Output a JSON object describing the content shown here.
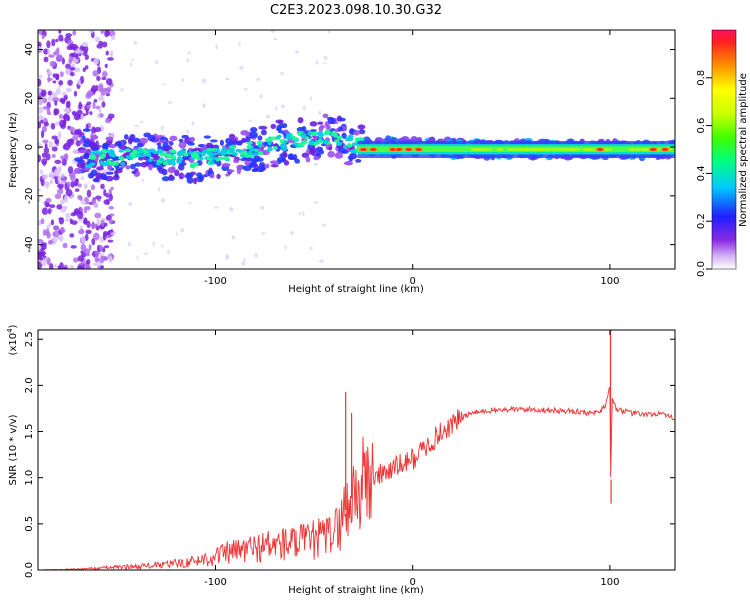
{
  "page_title": "C2E3.2023.098.10.30.G32",
  "chart_data": [
    {
      "type": "heatmap",
      "name": "spectrogram",
      "xlabel": "Height of straight line (km)",
      "ylabel": "Frequency (Hz)",
      "xlim": [
        -190,
        133
      ],
      "ylim": [
        -50,
        48
      ],
      "x_ticks": [
        -100,
        0,
        100
      ],
      "x_tick_labels": [
        "-100",
        "0",
        "100"
      ],
      "y_ticks": [
        -40,
        -20,
        0,
        20,
        40
      ],
      "y_tick_labels": [
        "-40",
        "-20",
        "0",
        "20",
        "40"
      ],
      "ridge": [
        {
          "x": -165,
          "y": -5
        },
        {
          "x": -150,
          "y": -4
        },
        {
          "x": -130,
          "y": -4
        },
        {
          "x": -110,
          "y": -5
        },
        {
          "x": -95,
          "y": -3
        },
        {
          "x": -80,
          "y": -1
        },
        {
          "x": -65,
          "y": 2
        },
        {
          "x": -50,
          "y": 4
        },
        {
          "x": -40,
          "y": 5
        },
        {
          "x": -30,
          "y": 1
        },
        {
          "x": -20,
          "y": 0
        },
        {
          "x": 0,
          "y": 0
        },
        {
          "x": 50,
          "y": -1
        },
        {
          "x": 100,
          "y": -1
        },
        {
          "x": 133,
          "y": -1
        }
      ],
      "colorbar": {
        "label": "Normalized spectral amplitude",
        "range": [
          0,
          1
        ],
        "ticks": [
          0,
          0.2,
          0.4,
          0.6,
          0.8
        ],
        "tick_labels": [
          "0.0",
          "0.2",
          "0.4",
          "0.6",
          "0.8"
        ]
      }
    },
    {
      "type": "line",
      "name": "snr",
      "xlabel": "Height of straight line (km)",
      "ylabel": "SNR (10 * v/v)",
      "y_exponent_label": "(x10",
      "y_exponent_power": "4",
      "y_exponent_close": ")",
      "xlim": [
        -190,
        133
      ],
      "ylim": [
        0,
        2.6
      ],
      "x_ticks": [
        -100,
        0,
        100
      ],
      "x_tick_labels": [
        "-100",
        "0",
        "100"
      ],
      "y_ticks": [
        0,
        0.5,
        1.0,
        1.5,
        2.0,
        2.5
      ],
      "y_tick_labels": [
        "0.0",
        "0.5",
        "1.0",
        "1.5",
        "2.0",
        "2.5"
      ],
      "series": [
        {
          "name": "SNR",
          "color": "#ee3333",
          "x": [
            -190,
            -170,
            -150,
            -130,
            -115,
            -105,
            -95,
            -85,
            -75,
            -65,
            -55,
            -45,
            -38,
            -33,
            -29,
            -26,
            -24,
            -20,
            -15,
            -10,
            -5,
            0,
            5,
            10,
            15,
            20,
            25,
            30,
            40,
            50,
            60,
            70,
            80,
            90,
            95,
            98,
            100,
            100.5,
            101,
            103,
            110,
            120,
            125,
            130,
            133
          ],
          "y": [
            0.0,
            0.01,
            0.03,
            0.05,
            0.08,
            0.12,
            0.18,
            0.22,
            0.26,
            0.28,
            0.3,
            0.35,
            0.45,
            0.7,
            0.85,
            0.9,
            0.95,
            1.0,
            1.05,
            1.1,
            1.15,
            1.2,
            1.3,
            1.4,
            1.5,
            1.58,
            1.65,
            1.7,
            1.73,
            1.74,
            1.74,
            1.73,
            1.72,
            1.7,
            1.72,
            1.8,
            2.0,
            0.75,
            1.9,
            1.75,
            1.7,
            1.68,
            1.7,
            1.65,
            1.65
          ]
        }
      ],
      "spikes": [
        {
          "x": -34,
          "y": 1.93
        },
        {
          "x": -31,
          "y": 1.7
        },
        {
          "x": 100.3,
          "y": 2.6
        },
        {
          "x": 100.6,
          "y": 0.72
        }
      ]
    }
  ]
}
